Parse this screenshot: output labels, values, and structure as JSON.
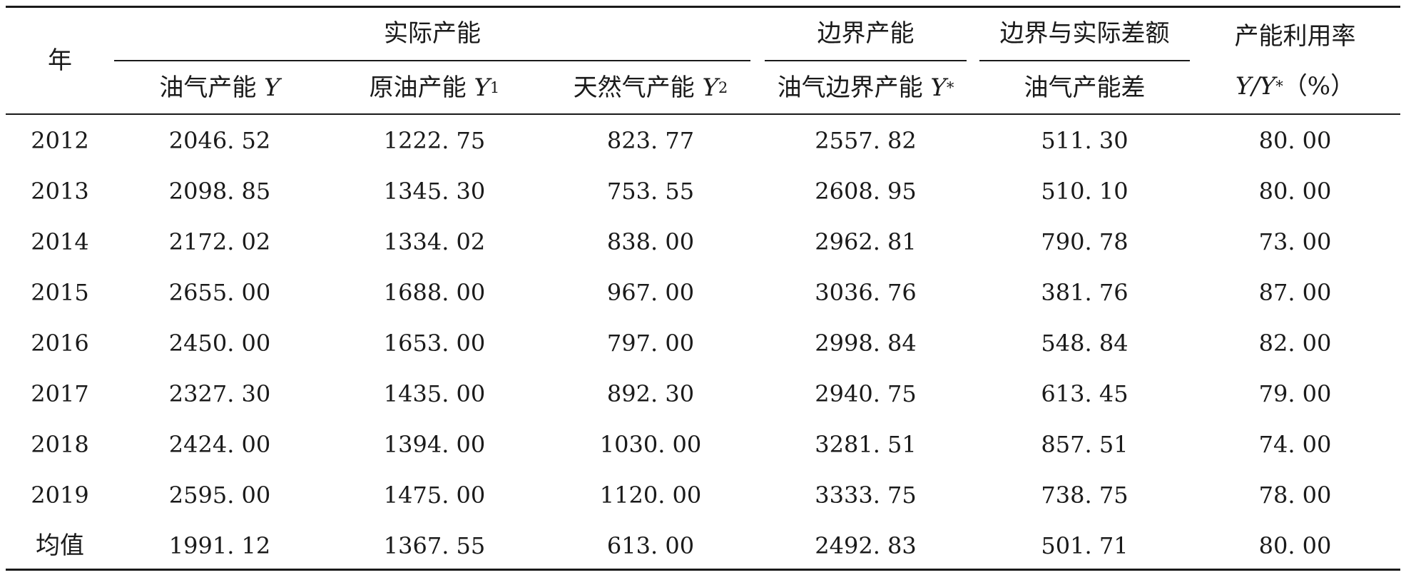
{
  "headers": {
    "year": "年",
    "actual_group": "实际产能",
    "marginal_group": "边界产能",
    "diff_group": "边界与实际差额",
    "util_group": "产能利用率",
    "oil_gas": "油气产能",
    "oil_gas_sym": "Y",
    "crude": "原油产能",
    "crude_sym": "Y",
    "crude_sub": "1",
    "gas": "天然气产能",
    "gas_sym": "Y",
    "gas_sub": "2",
    "marginal": "油气边界产能",
    "marginal_sym": "Y",
    "marginal_sup": "*",
    "diff": "油气产能差",
    "util_sym": "Y/Y",
    "util_sup": "*",
    "util_unit": "（%）"
  },
  "rows": [
    [
      "2012",
      "2046. 52",
      "1222. 75",
      "823. 77",
      "2557. 82",
      "511. 30",
      "80. 00"
    ],
    [
      "2013",
      "2098. 85",
      "1345. 30",
      "753. 55",
      "2608. 95",
      "510. 10",
      "80. 00"
    ],
    [
      "2014",
      "2172. 02",
      "1334. 02",
      "838. 00",
      "2962. 81",
      "790. 78",
      "73. 00"
    ],
    [
      "2015",
      "2655. 00",
      "1688. 00",
      "967. 00",
      "3036. 76",
      "381. 76",
      "87. 00"
    ],
    [
      "2016",
      "2450. 00",
      "1653. 00",
      "797. 00",
      "2998. 84",
      "548. 84",
      "82. 00"
    ],
    [
      "2017",
      "2327. 30",
      "1435. 00",
      "892. 30",
      "2940. 75",
      "613. 45",
      "79. 00"
    ],
    [
      "2018",
      "2424. 00",
      "1394. 00",
      "1030. 00",
      "3281. 51",
      "857. 51",
      "74. 00"
    ],
    [
      "2019",
      "2595. 00",
      "1475. 00",
      "1120. 00",
      "3333. 75",
      "738. 75",
      "78. 00"
    ],
    [
      "均值",
      "1991. 12",
      "1367. 55",
      "613. 00",
      "2492. 83",
      "501. 71",
      "80. 00"
    ]
  ]
}
